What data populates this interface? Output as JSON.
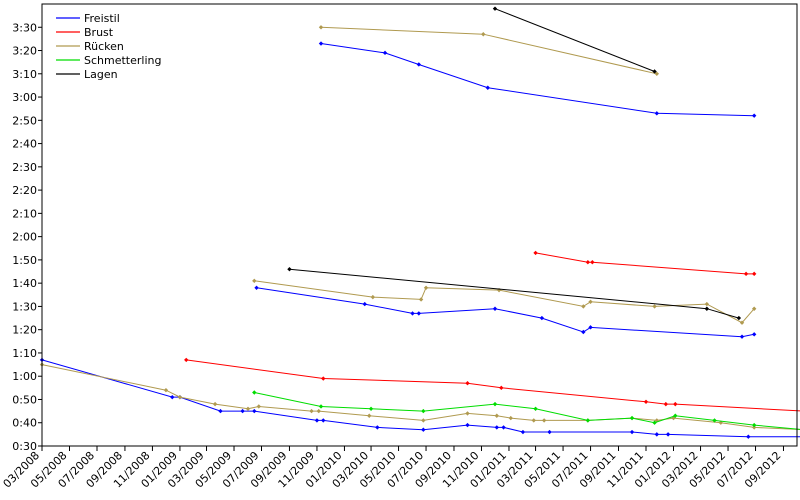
{
  "chart_data": {
    "type": "line",
    "title": "",
    "xlabel": "",
    "ylabel": "",
    "xlim": [
      "2008-03-01",
      "2012-10-01"
    ],
    "ylim": [
      "0:30",
      "3:40"
    ],
    "x_ticks": [
      "03/2008",
      "05/2008",
      "07/2008",
      "09/2008",
      "11/2008",
      "01/2009",
      "03/2009",
      "05/2009",
      "07/2009",
      "09/2009",
      "11/2009",
      "01/2010",
      "03/2010",
      "05/2010",
      "07/2010",
      "09/2010",
      "11/2010",
      "01/2011",
      "03/2011",
      "05/2011",
      "07/2011",
      "09/2011",
      "11/2011",
      "01/2012",
      "03/2012",
      "05/2012",
      "07/2012",
      "09/2012"
    ],
    "y_ticks": [
      "0:30",
      "0:40",
      "0:50",
      "1:00",
      "1:10",
      "1:20",
      "1:30",
      "1:40",
      "1:50",
      "2:00",
      "2:10",
      "2:20",
      "2:30",
      "2:40",
      "2:50",
      "3:00",
      "3:10",
      "3:20",
      "3:30"
    ],
    "grid": false,
    "legend_position": "top-left",
    "series": [
      {
        "name": "Freistil",
        "color": "#0000ff",
        "lines": [
          [
            [
              "2008-03-01",
              "1:07"
            ],
            [
              "2008-12-15",
              "0:51"
            ],
            [
              "2009-01-01",
              "0:51"
            ],
            [
              "2009-04-01",
              "0:45"
            ],
            [
              "2009-05-20",
              "0:45"
            ],
            [
              "2009-06-15",
              "0:45"
            ],
            [
              "2009-11-01",
              "0:41"
            ],
            [
              "2009-11-15",
              "0:41"
            ],
            [
              "2010-03-15",
              "0:38"
            ],
            [
              "2010-06-25",
              "0:37"
            ],
            [
              "2010-10-01",
              "0:39"
            ],
            [
              "2010-12-05",
              "0:38"
            ],
            [
              "2010-12-20",
              "0:38"
            ],
            [
              "2011-02-01",
              "0:36"
            ],
            [
              "2011-04-01",
              "0:36"
            ],
            [
              "2011-10-01",
              "0:36"
            ],
            [
              "2011-11-25",
              "0:35"
            ],
            [
              "2011-12-20",
              "0:35"
            ],
            [
              "2012-06-15",
              "0:34"
            ],
            [
              "2012-10-15",
              "0:34"
            ]
          ],
          [
            [
              "2009-06-20",
              "1:38"
            ],
            [
              "2010-02-15",
              "1:31"
            ],
            [
              "2010-06-01",
              "1:27"
            ],
            [
              "2010-06-15",
              "1:27"
            ],
            [
              "2010-12-01",
              "1:29"
            ],
            [
              "2011-03-15",
              "1:25"
            ],
            [
              "2011-06-15",
              "1:19"
            ],
            [
              "2011-07-01",
              "1:21"
            ],
            [
              "2012-06-01",
              "1:17"
            ],
            [
              "2012-06-28",
              "1:18"
            ]
          ],
          [
            [
              "2009-11-10",
              "3:23"
            ],
            [
              "2010-04-01",
              "3:19"
            ],
            [
              "2010-06-15",
              "3:14"
            ],
            [
              "2010-11-15",
              "3:04"
            ],
            [
              "2011-11-25",
              "2:53"
            ],
            [
              "2012-06-28",
              "2:52"
            ]
          ]
        ]
      },
      {
        "name": "Brust",
        "color": "#ff0000",
        "lines": [
          [
            [
              "2009-01-15",
              "1:07"
            ],
            [
              "2009-11-15",
              "0:59"
            ],
            [
              "2010-10-01",
              "0:57"
            ],
            [
              "2010-12-15",
              "0:55"
            ],
            [
              "2011-11-01",
              "0:49"
            ],
            [
              "2011-12-15",
              "0:48"
            ],
            [
              "2012-01-05",
              "0:48"
            ],
            [
              "2012-10-15",
              "0:45"
            ]
          ],
          [
            [
              "2011-03-01",
              "1:53"
            ],
            [
              "2011-06-25",
              "1:49"
            ],
            [
              "2011-07-05",
              "1:49"
            ],
            [
              "2012-06-10",
              "1:44"
            ],
            [
              "2012-06-28",
              "1:44"
            ]
          ]
        ]
      },
      {
        "name": "Rücken",
        "color": "#b09a50",
        "lines": [
          [
            [
              "2008-03-01",
              "1:05"
            ],
            [
              "2008-12-01",
              "0:54"
            ],
            [
              "2009-01-01",
              "0:51"
            ],
            [
              "2009-03-20",
              "0:48"
            ],
            [
              "2009-06-01",
              "0:46"
            ],
            [
              "2009-06-25",
              "0:47"
            ],
            [
              "2009-10-20",
              "0:45"
            ],
            [
              "2009-11-05",
              "0:45"
            ],
            [
              "2010-02-25",
              "0:43"
            ],
            [
              "2010-06-25",
              "0:41"
            ],
            [
              "2010-10-01",
              "0:44"
            ],
            [
              "2010-12-05",
              "0:43"
            ],
            [
              "2011-01-05",
              "0:42"
            ],
            [
              "2011-02-25",
              "0:41"
            ],
            [
              "2011-03-20",
              "0:41"
            ],
            [
              "2011-06-25",
              "0:41"
            ],
            [
              "2011-10-01",
              "0:42"
            ],
            [
              "2011-11-25",
              "0:41"
            ],
            [
              "2012-01-01",
              "0:42"
            ],
            [
              "2012-04-15",
              "0:40"
            ],
            [
              "2012-06-28",
              "0:38"
            ],
            [
              "2012-10-15",
              "0:37"
            ]
          ],
          [
            [
              "2009-06-15",
              "1:41"
            ],
            [
              "2010-03-05",
              "1:34"
            ],
            [
              "2010-06-20",
              "1:33"
            ],
            [
              "2010-07-01",
              "1:38"
            ],
            [
              "2010-12-10",
              "1:37"
            ],
            [
              "2011-06-15",
              "1:30"
            ],
            [
              "2011-07-01",
              "1:32"
            ],
            [
              "2011-11-20",
              "1:30"
            ],
            [
              "2012-03-15",
              "1:31"
            ],
            [
              "2012-06-01",
              "1:23"
            ],
            [
              "2012-06-28",
              "1:29"
            ]
          ],
          [
            [
              "2009-11-10",
              "3:30"
            ],
            [
              "2010-11-05",
              "3:27"
            ],
            [
              "2011-11-25",
              "3:10"
            ]
          ]
        ]
      },
      {
        "name": "Schmetterling",
        "color": "#00dd00",
        "lines": [
          [
            [
              "2009-06-15",
              "0:53"
            ],
            [
              "2009-11-10",
              "0:47"
            ],
            [
              "2010-03-01",
              "0:46"
            ],
            [
              "2010-06-25",
              "0:45"
            ],
            [
              "2010-12-01",
              "0:48"
            ],
            [
              "2011-03-01",
              "0:46"
            ],
            [
              "2011-06-25",
              "0:41"
            ],
            [
              "2011-10-01",
              "0:42"
            ],
            [
              "2011-11-20",
              "0:40"
            ],
            [
              "2012-01-05",
              "0:43"
            ],
            [
              "2012-04-01",
              "0:41"
            ],
            [
              "2012-06-28",
              "0:39"
            ],
            [
              "2012-10-15",
              "0:37"
            ]
          ]
        ]
      },
      {
        "name": "Lagen",
        "color": "#000000",
        "lines": [
          [
            [
              "2009-09-01",
              "1:46"
            ],
            [
              "2012-03-15",
              "1:29"
            ],
            [
              "2012-05-25",
              "1:25"
            ]
          ],
          [
            [
              "2010-12-01",
              "3:38"
            ],
            [
              "2011-11-20",
              "3:11"
            ]
          ]
        ]
      }
    ]
  }
}
